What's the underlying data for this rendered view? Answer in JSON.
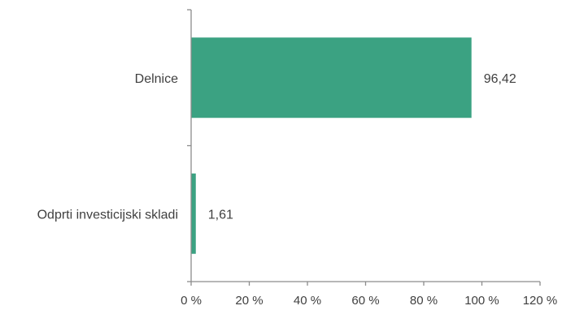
{
  "chart_data": {
    "type": "bar",
    "orientation": "horizontal",
    "title": "",
    "xlabel": "",
    "ylabel": "",
    "categories": [
      "Delnice",
      "Odprti investicijski skladi"
    ],
    "values": [
      96.42,
      1.61
    ],
    "value_labels": [
      "96,42",
      "1,61"
    ],
    "xlim": [
      0,
      120
    ],
    "x_ticks": [
      0,
      20,
      40,
      60,
      80,
      100,
      120
    ],
    "x_tick_labels": [
      "0 %",
      "20 %",
      "40 %",
      "60 %",
      "80 %",
      "100 %",
      "120 %"
    ],
    "grid": false,
    "legend": "none",
    "colors": {
      "bar": "#3ba282",
      "axis": "#8c8c8c",
      "text": "#404040"
    }
  }
}
